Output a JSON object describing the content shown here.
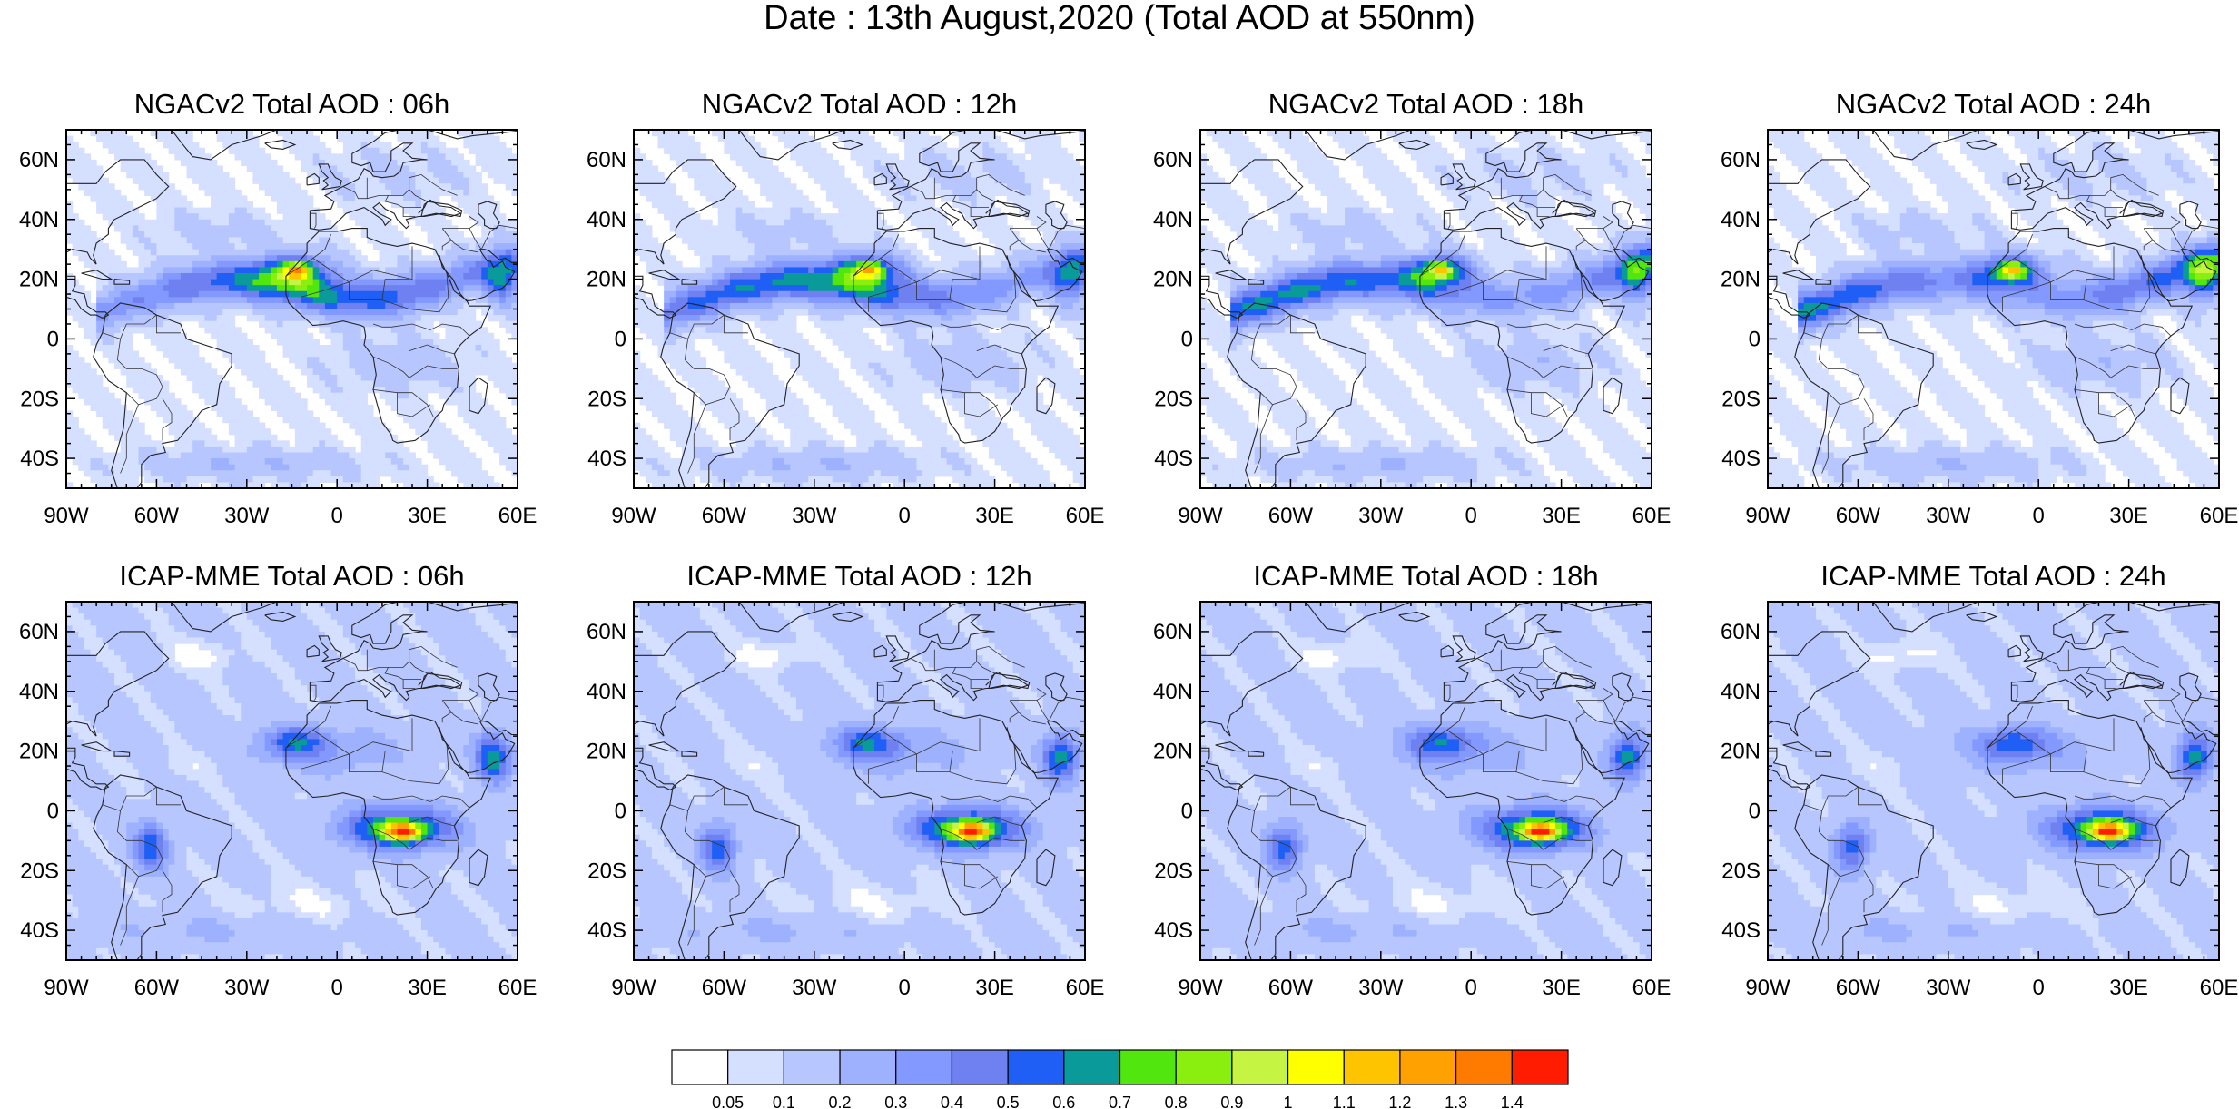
{
  "title": "Date : 13th August,2020 (Total AOD at 550nm)",
  "axes": {
    "lon_ticks": [
      "90W",
      "60W",
      "30W",
      "0",
      "30E",
      "60E"
    ],
    "lon_values": [
      -90,
      -60,
      -30,
      0,
      30,
      60
    ],
    "lat_ticks": [
      "60N",
      "40N",
      "20N",
      "0",
      "20S",
      "40S"
    ],
    "lat_values": [
      60,
      40,
      20,
      0,
      -20,
      -40
    ],
    "lon_range": [
      -90,
      60
    ],
    "lat_range": [
      -50,
      70
    ]
  },
  "panels": [
    {
      "title": "NGACv2 Total AOD : 06h",
      "model": "ngac"
    },
    {
      "title": "NGACv2 Total AOD : 12h",
      "model": "ngac"
    },
    {
      "title": "NGACv2 Total AOD : 18h",
      "model": "ngac"
    },
    {
      "title": "NGACv2 Total AOD : 24h",
      "model": "ngac"
    },
    {
      "title": "ICAP-MME Total AOD : 06h",
      "model": "icap"
    },
    {
      "title": "ICAP-MME Total AOD : 12h",
      "model": "icap"
    },
    {
      "title": "ICAP-MME Total AOD : 18h",
      "model": "icap"
    },
    {
      "title": "ICAP-MME Total AOD : 24h",
      "model": "icap"
    }
  ],
  "colorbar": {
    "labels": [
      "0.05",
      "0.1",
      "0.2",
      "0.3",
      "0.4",
      "0.5",
      "0.6",
      "0.7",
      "0.8",
      "0.9",
      "1",
      "1.1",
      "1.2",
      "1.3",
      "1.4"
    ],
    "colors": [
      "#ffffff",
      "#d5dfff",
      "#b8c6ff",
      "#9db1ff",
      "#8499ff",
      "#6f80f0",
      "#1f5ff5",
      "#0a9a9a",
      "#52e60f",
      "#8aee0e",
      "#c5f542",
      "#ffff00",
      "#ffc400",
      "#ffa100",
      "#ff7b00",
      "#ff1c00"
    ]
  }
}
